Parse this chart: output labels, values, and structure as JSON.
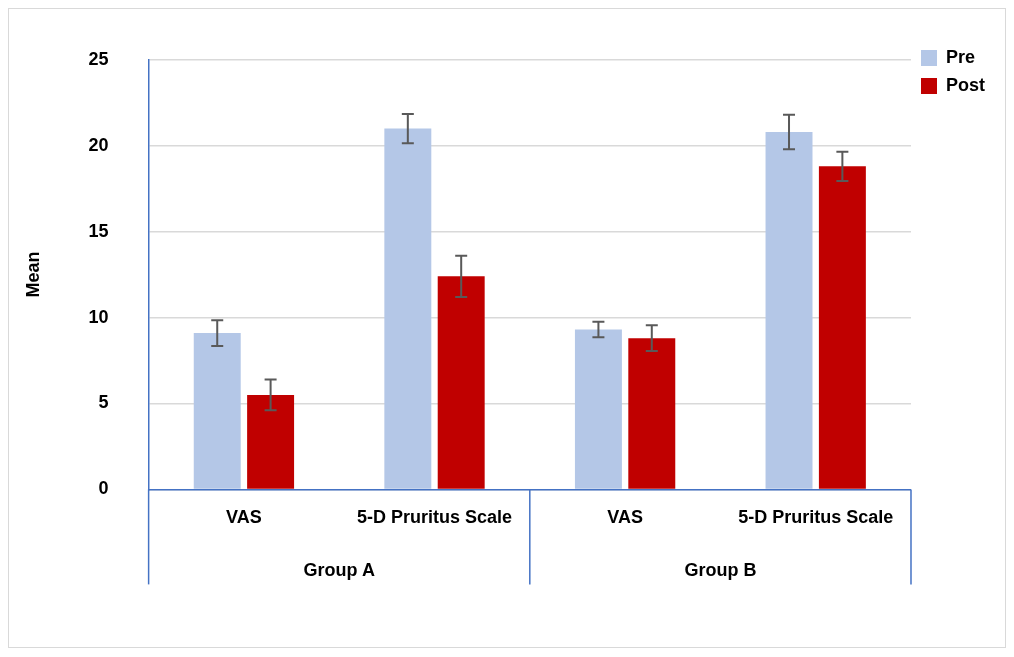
{
  "chart_data": {
    "type": "bar",
    "ylabel": "Mean",
    "categories": [
      "VAS",
      "5-D Pruritus Scale",
      "VAS",
      "5-D Pruritus Scale"
    ],
    "series": [
      {
        "name": "Pre",
        "color": "#b4c7e7",
        "values": [
          9.1,
          21.0,
          9.3,
          20.8
        ],
        "errors": [
          0.75,
          0.85,
          0.45,
          1.0
        ]
      },
      {
        "name": "Post",
        "color": "#c00000",
        "values": [
          5.5,
          12.4,
          8.8,
          18.8
        ],
        "errors": [
          0.9,
          1.2,
          0.75,
          0.85
        ]
      }
    ],
    "ylim": [
      0,
      25
    ],
    "yticks": [
      0,
      5,
      10,
      15,
      20,
      25
    ],
    "grid": "y",
    "legend": "top right",
    "annotations": [
      "Group A",
      "Group B"
    ]
  }
}
